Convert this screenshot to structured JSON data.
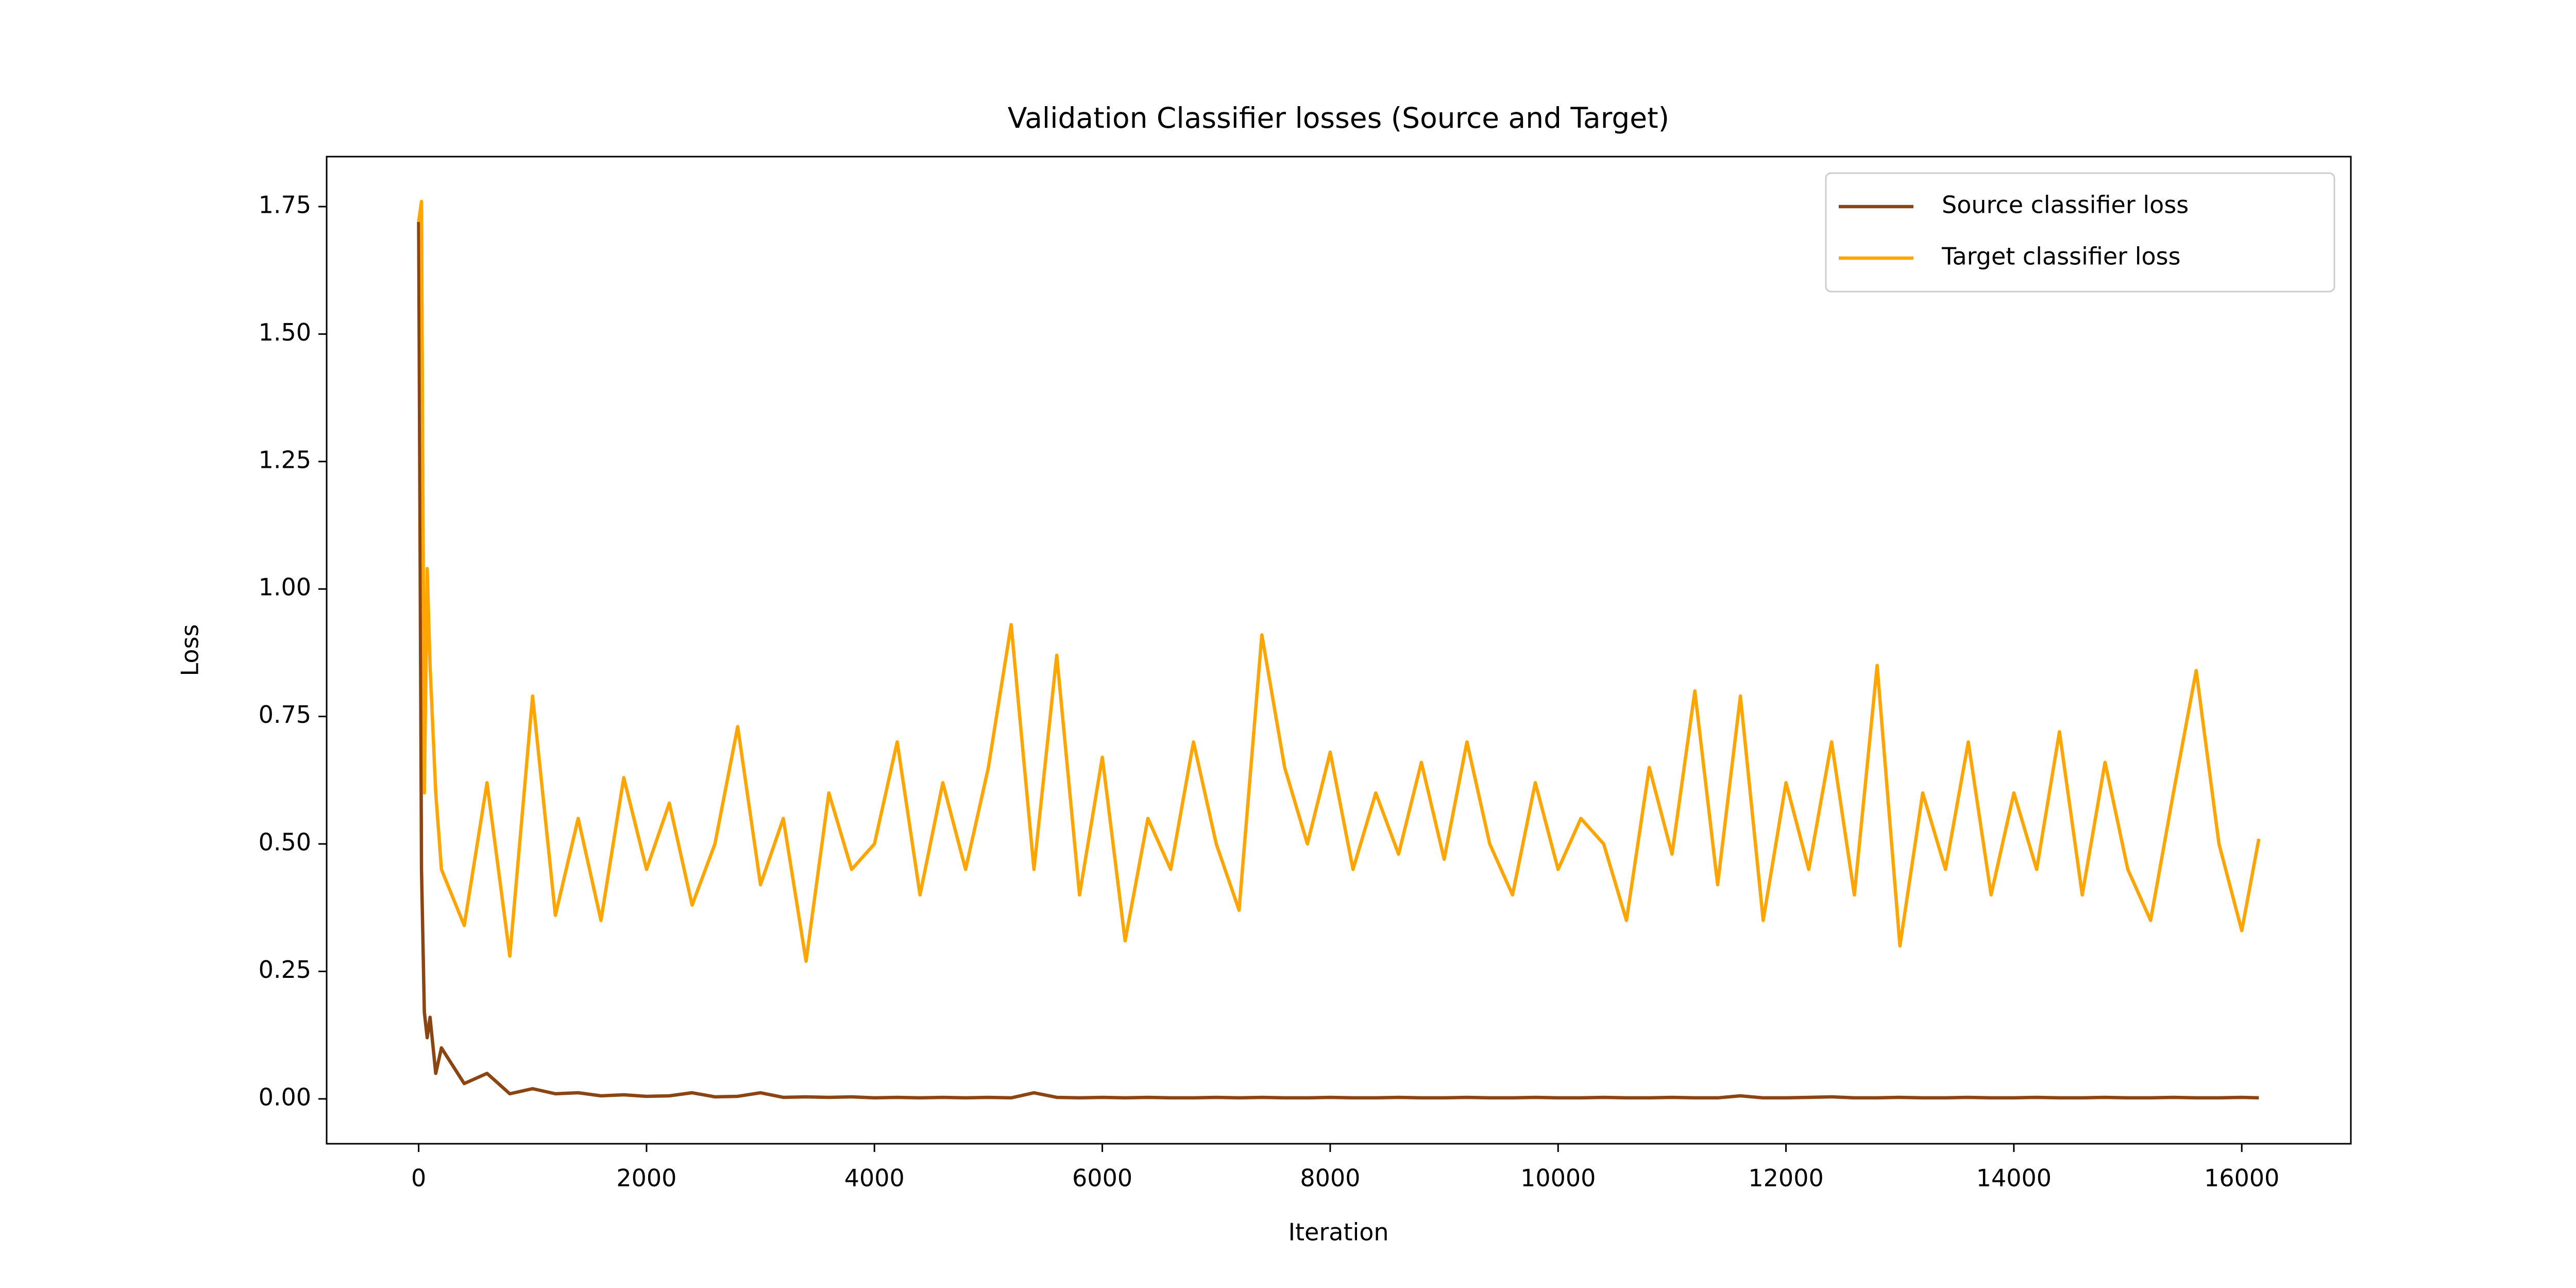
{
  "chart_data": {
    "type": "line",
    "title": "Validation Classifier losses (Source and Target)",
    "x_label": "Iteration",
    "y_label": "Loss",
    "x": [
      0,
      25,
      50,
      75,
      100,
      150,
      200,
      400,
      600,
      800,
      1000,
      1200,
      1400,
      1600,
      1800,
      2000,
      2200,
      2400,
      2600,
      2800,
      3000,
      3200,
      3400,
      3600,
      3800,
      4000,
      4200,
      4400,
      4600,
      4800,
      5000,
      5200,
      5400,
      5600,
      5800,
      6000,
      6200,
      6400,
      6600,
      6800,
      7000,
      7200,
      7400,
      7600,
      7800,
      8000,
      8200,
      8400,
      8600,
      8800,
      9000,
      9200,
      9400,
      9600,
      9800,
      10000,
      10200,
      10400,
      10600,
      10800,
      11000,
      11200,
      11400,
      11600,
      11800,
      12000,
      12200,
      12400,
      12600,
      12800,
      13000,
      13200,
      13400,
      13600,
      13800,
      14000,
      14200,
      14400,
      14600,
      14800,
      15000,
      15200,
      15400,
      15600,
      15800,
      16000,
      16150
    ],
    "series": [
      {
        "name": "Source classifier loss",
        "color": "#8b4513",
        "values": [
          1.72,
          0.45,
          0.17,
          0.12,
          0.16,
          0.05,
          0.1,
          0.03,
          0.05,
          0.01,
          0.02,
          0.01,
          0.012,
          0.006,
          0.008,
          0.005,
          0.006,
          0.012,
          0.004,
          0.005,
          0.012,
          0.003,
          0.004,
          0.003,
          0.004,
          0.002,
          0.003,
          0.002,
          0.003,
          0.002,
          0.003,
          0.002,
          0.012,
          0.003,
          0.002,
          0.003,
          0.002,
          0.003,
          0.002,
          0.002,
          0.003,
          0.002,
          0.003,
          0.002,
          0.002,
          0.003,
          0.002,
          0.002,
          0.003,
          0.002,
          0.002,
          0.003,
          0.002,
          0.002,
          0.003,
          0.002,
          0.002,
          0.003,
          0.002,
          0.002,
          0.003,
          0.002,
          0.002,
          0.006,
          0.002,
          0.002,
          0.003,
          0.004,
          0.002,
          0.002,
          0.003,
          0.002,
          0.002,
          0.003,
          0.002,
          0.002,
          0.003,
          0.002,
          0.002,
          0.003,
          0.002,
          0.002,
          0.003,
          0.002,
          0.002,
          0.003,
          0.002
        ]
      },
      {
        "name": "Target classifier loss",
        "color": "#ffa500",
        "values": [
          1.72,
          1.76,
          0.6,
          1.04,
          0.85,
          0.6,
          0.45,
          0.34,
          0.62,
          0.28,
          0.79,
          0.36,
          0.55,
          0.35,
          0.63,
          0.45,
          0.58,
          0.38,
          0.5,
          0.73,
          0.42,
          0.55,
          0.27,
          0.6,
          0.45,
          0.5,
          0.7,
          0.4,
          0.62,
          0.45,
          0.65,
          0.93,
          0.45,
          0.87,
          0.4,
          0.67,
          0.31,
          0.55,
          0.45,
          0.7,
          0.5,
          0.37,
          0.91,
          0.65,
          0.5,
          0.68,
          0.45,
          0.6,
          0.48,
          0.66,
          0.47,
          0.7,
          0.5,
          0.4,
          0.62,
          0.45,
          0.55,
          0.5,
          0.35,
          0.65,
          0.48,
          0.8,
          0.42,
          0.79,
          0.35,
          0.62,
          0.45,
          0.7,
          0.4,
          0.85,
          0.3,
          0.6,
          0.45,
          0.7,
          0.4,
          0.6,
          0.45,
          0.72,
          0.4,
          0.66,
          0.45,
          0.35,
          0.6,
          0.84,
          0.5,
          0.33,
          0.51
        ]
      }
    ],
    "xlim": [
      -807.5,
      16957.5
    ],
    "ylim": [
      -0.088,
      1.848
    ],
    "xticks": [
      0,
      2000,
      4000,
      6000,
      8000,
      10000,
      12000,
      14000,
      16000
    ],
    "yticks": [
      {
        "value": 0,
        "label": "0.00"
      },
      {
        "value": 0.25,
        "label": "0.25"
      },
      {
        "value": 0.5,
        "label": "0.50"
      },
      {
        "value": 0.75,
        "label": "0.75"
      },
      {
        "value": 1,
        "label": "1.00"
      },
      {
        "value": 1.25,
        "label": "1.25"
      },
      {
        "value": 1.5,
        "label": "1.50"
      },
      {
        "value": 1.75,
        "label": "1.75"
      }
    ],
    "grid": false,
    "legend": "upper right"
  }
}
